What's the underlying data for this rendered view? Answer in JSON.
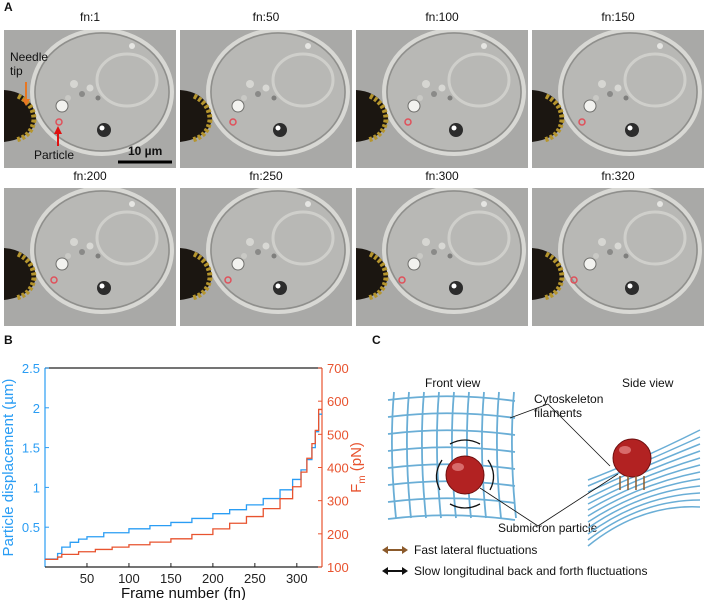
{
  "panels": {
    "a": "A",
    "b": "B",
    "c": "C"
  },
  "frames": [
    {
      "label": "fn:1"
    },
    {
      "label": "fn:50"
    },
    {
      "label": "fn:100"
    },
    {
      "label": "fn:150"
    },
    {
      "label": "fn:200"
    },
    {
      "label": "fn:250"
    },
    {
      "label": "fn:300"
    },
    {
      "label": "fn:320"
    }
  ],
  "annotations": {
    "needle": "Needle\ntip",
    "particle": "Particle",
    "scalebar": "10 µm"
  },
  "chart_data": {
    "type": "line",
    "xlabel": "Frame number (fn)",
    "ylabel_left": "Particle displacement (µm)",
    "ylabel_right_main": "F",
    "ylabel_right_sub": "m",
    "ylabel_right_unit": " (pN)",
    "xlim": [
      0,
      330
    ],
    "ylim_left": [
      0,
      2.5
    ],
    "ylim_right": [
      100,
      700
    ],
    "xticks": [
      50,
      100,
      150,
      200,
      250,
      300
    ],
    "yticks_left": [
      0.5,
      1,
      1.5,
      2,
      2.5
    ],
    "yticks_right": [
      100,
      200,
      300,
      400,
      500,
      600,
      700
    ],
    "series": [
      {
        "axis": "left",
        "color": "#2a9df4",
        "x": [
          0,
          10,
          15,
          20,
          30,
          40,
          50,
          70,
          100,
          125,
          150,
          175,
          200,
          220,
          240,
          260,
          280,
          295,
          305,
          312,
          318,
          322,
          326,
          330
        ],
        "y": [
          0.1,
          0.1,
          0.17,
          0.25,
          0.31,
          0.35,
          0.38,
          0.43,
          0.48,
          0.52,
          0.56,
          0.61,
          0.67,
          0.72,
          0.78,
          0.86,
          0.97,
          1.1,
          1.22,
          1.35,
          1.5,
          1.7,
          1.92,
          1.92
        ]
      },
      {
        "axis": "right",
        "color": "#e8532f",
        "x": [
          0,
          10,
          15,
          20,
          40,
          60,
          80,
          100,
          125,
          150,
          175,
          200,
          220,
          240,
          260,
          280,
          295,
          305,
          312,
          318,
          322,
          326,
          330
        ],
        "y": [
          123,
          123,
          130,
          138,
          146,
          153,
          160,
          167,
          175,
          185,
          198,
          215,
          232,
          252,
          276,
          306,
          342,
          386,
          428,
          472,
          512,
          575,
          575
        ]
      }
    ]
  },
  "diagram": {
    "front_view": "Front view",
    "side_view": "Side view",
    "cyto": "Cytoskeleton\nfilaments",
    "submicron": "Submicron particle",
    "legend_fast": "Fast lateral fluctuations",
    "legend_slow": "Slow longitudinal back and forth fluctuations",
    "color_fast": "#8b5a2b",
    "color_slow": "#111111",
    "color_mesh": "#6aaed6",
    "color_particle": "#b22222"
  }
}
